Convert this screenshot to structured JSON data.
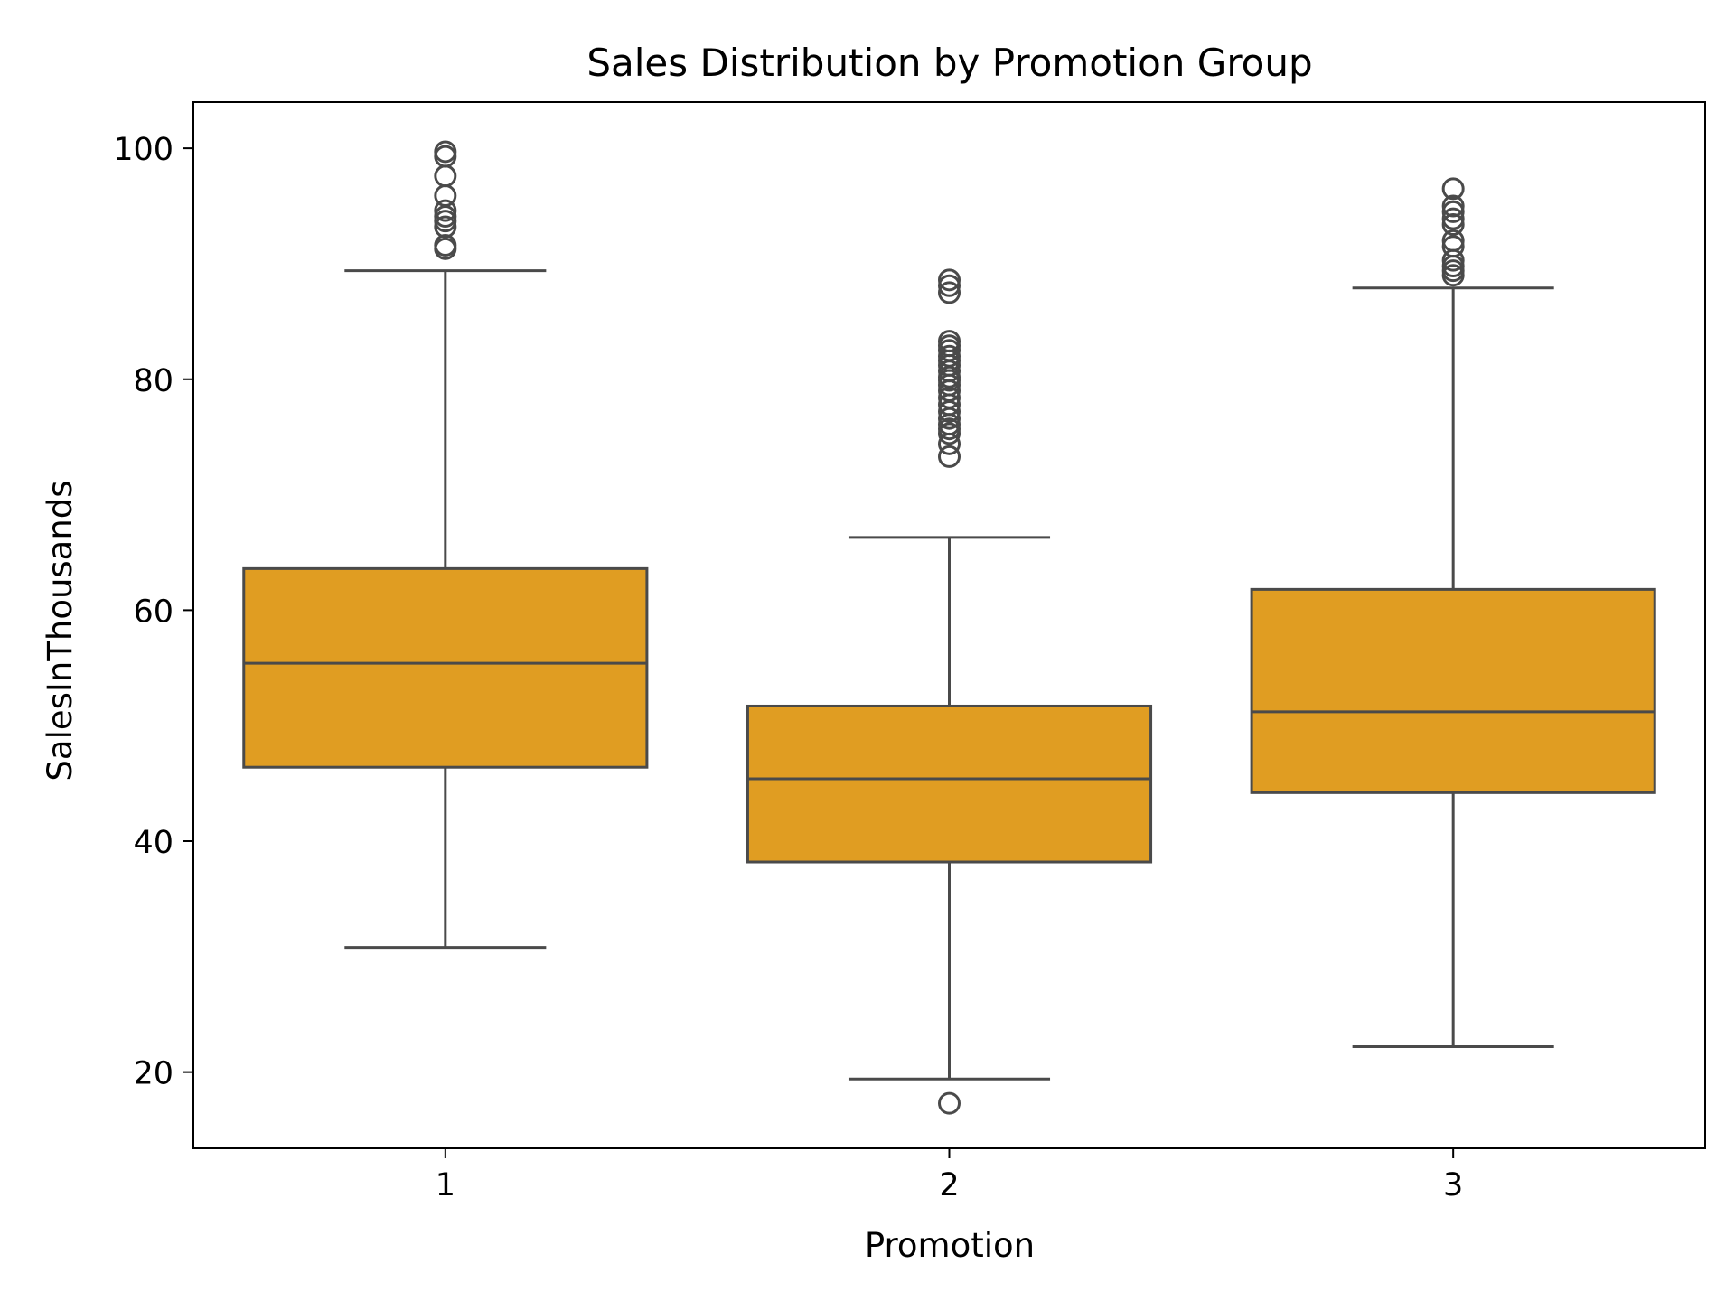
{
  "chart_data": {
    "type": "box",
    "title": "Sales Distribution by Promotion Group",
    "xlabel": "Promotion",
    "ylabel": "SalesInThousands",
    "categories": [
      "1",
      "2",
      "3"
    ],
    "ylim": [
      13.4,
      104
    ],
    "yticks": [
      20,
      40,
      60,
      80,
      100
    ],
    "grid": false,
    "legend": "none",
    "colors": {
      "box_fill": "#e09d22",
      "line": "#4a4a4a",
      "axis": "#000000"
    },
    "boxes": [
      {
        "category": "1",
        "whisker_low": 30.8,
        "q1": 46.4,
        "median": 55.4,
        "q3": 63.6,
        "whisker_high": 89.4,
        "outliers": [
          99.7,
          99.3,
          97.6,
          95.9,
          94.6,
          94.1,
          93.7,
          93.2,
          91.6,
          91.3
        ]
      },
      {
        "category": "2",
        "whisker_low": 19.4,
        "q1": 38.2,
        "median": 45.4,
        "q3": 51.7,
        "whisker_high": 66.3,
        "outliers": [
          88.6,
          88.1,
          87.5,
          83.3,
          82.9,
          82.5,
          82.0,
          81.6,
          81.2,
          80.7,
          80.2,
          79.9,
          79.5,
          79.0,
          78.4,
          77.8,
          77.2,
          76.6,
          76.1,
          75.7,
          75.3,
          74.4,
          73.3,
          17.3
        ]
      },
      {
        "category": "3",
        "whisker_low": 22.2,
        "q1": 44.2,
        "median": 51.2,
        "q3": 61.8,
        "whisker_high": 87.9,
        "outliers": [
          96.5,
          95.0,
          94.5,
          93.9,
          93.4,
          92.0,
          91.5,
          90.3,
          89.8,
          89.4,
          89.0
        ]
      }
    ]
  }
}
